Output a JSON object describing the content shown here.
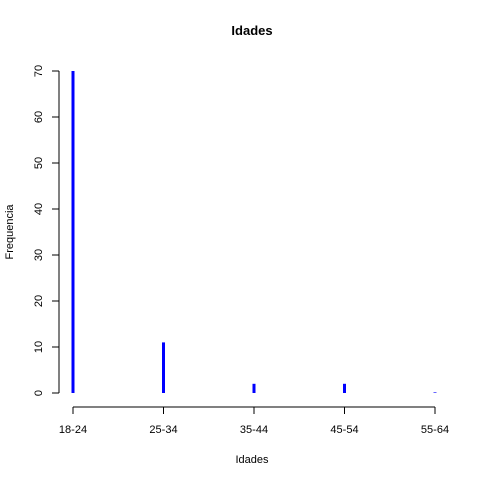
{
  "chart_data": {
    "type": "bar",
    "title": "Idades",
    "xlabel": "Idades",
    "ylabel": "Frequencia",
    "categories": [
      "18-24",
      "25-34",
      "35-44",
      "45-54",
      "55-64"
    ],
    "values": [
      70,
      11,
      2,
      2,
      0
    ],
    "yticks": [
      0,
      10,
      20,
      30,
      40,
      50,
      60,
      70
    ],
    "ylim": [
      0,
      70
    ],
    "grid": false,
    "legend": "none",
    "bar_color": "#0000ff"
  }
}
